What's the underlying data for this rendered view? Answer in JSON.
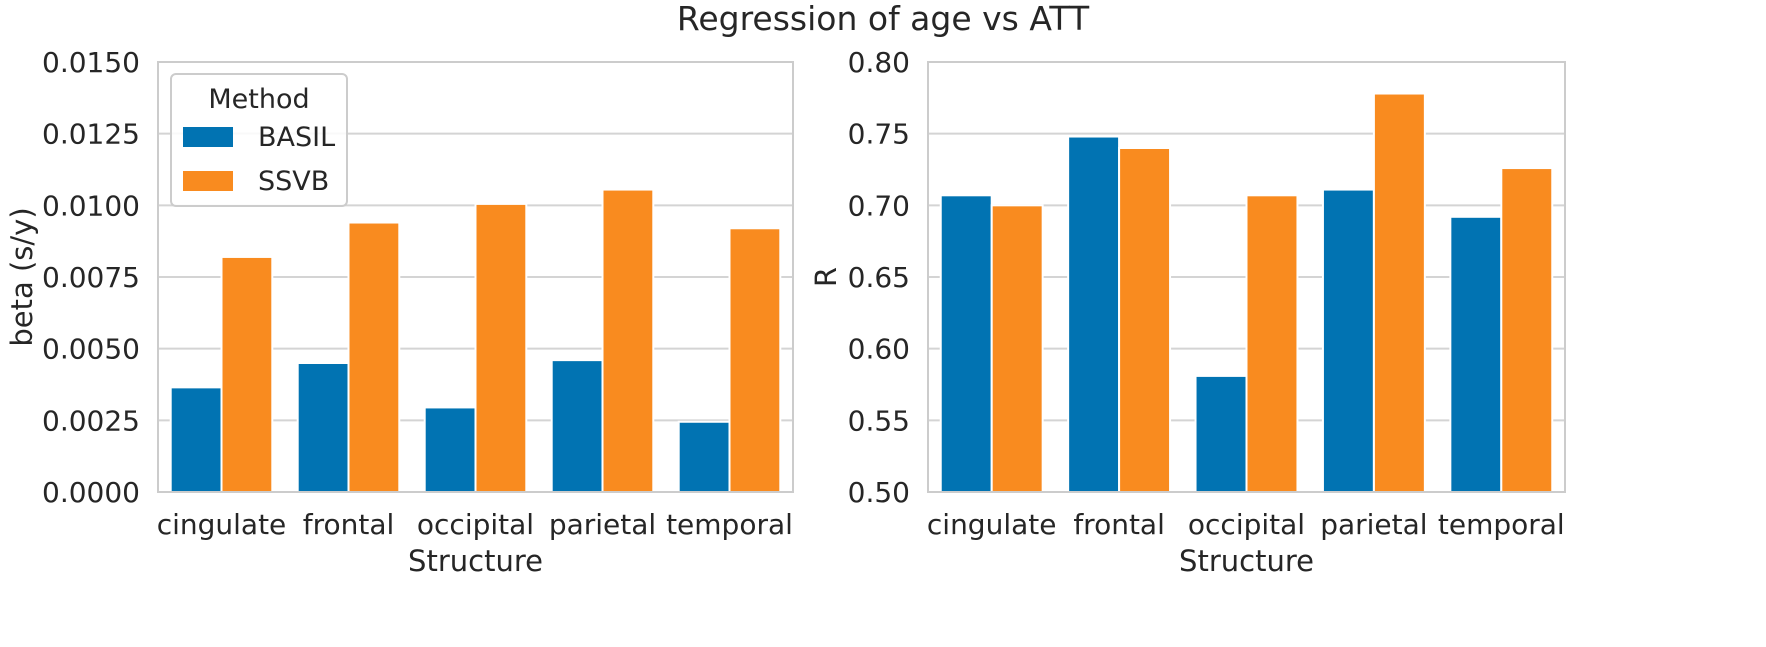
{
  "title": "Regression of age vs ATT",
  "colors": {
    "BASIL": "#0173b2",
    "SSVB": "#f98b1f"
  },
  "chart_data": [
    {
      "type": "bar",
      "xlabel": "Structure",
      "ylabel": "beta (s/y)",
      "ylim": [
        0,
        0.015
      ],
      "yticks": [
        "0.0000",
        "0.0025",
        "0.0050",
        "0.0075",
        "0.0100",
        "0.0125",
        "0.0150"
      ],
      "categories": [
        "cingulate",
        "frontal",
        "occipital",
        "parietal",
        "temporal"
      ],
      "grid": true,
      "legend": {
        "title": "Method",
        "placement": "upper-left"
      },
      "series": [
        {
          "name": "BASIL",
          "values": [
            0.00365,
            0.0045,
            0.00295,
            0.0046,
            0.00245
          ]
        },
        {
          "name": "SSVB",
          "values": [
            0.0082,
            0.0094,
            0.01005,
            0.01055,
            0.0092
          ]
        }
      ]
    },
    {
      "type": "bar",
      "xlabel": "Structure",
      "ylabel": "R",
      "ylim": [
        0.5,
        0.8
      ],
      "yticks": [
        "0.50",
        "0.55",
        "0.60",
        "0.65",
        "0.70",
        "0.75",
        "0.80"
      ],
      "categories": [
        "cingulate",
        "frontal",
        "occipital",
        "parietal",
        "temporal"
      ],
      "grid": true,
      "series": [
        {
          "name": "BASIL",
          "values": [
            0.707,
            0.748,
            0.581,
            0.711,
            0.692
          ]
        },
        {
          "name": "SSVB",
          "values": [
            0.7,
            0.74,
            0.707,
            0.778,
            0.726
          ]
        }
      ]
    }
  ]
}
